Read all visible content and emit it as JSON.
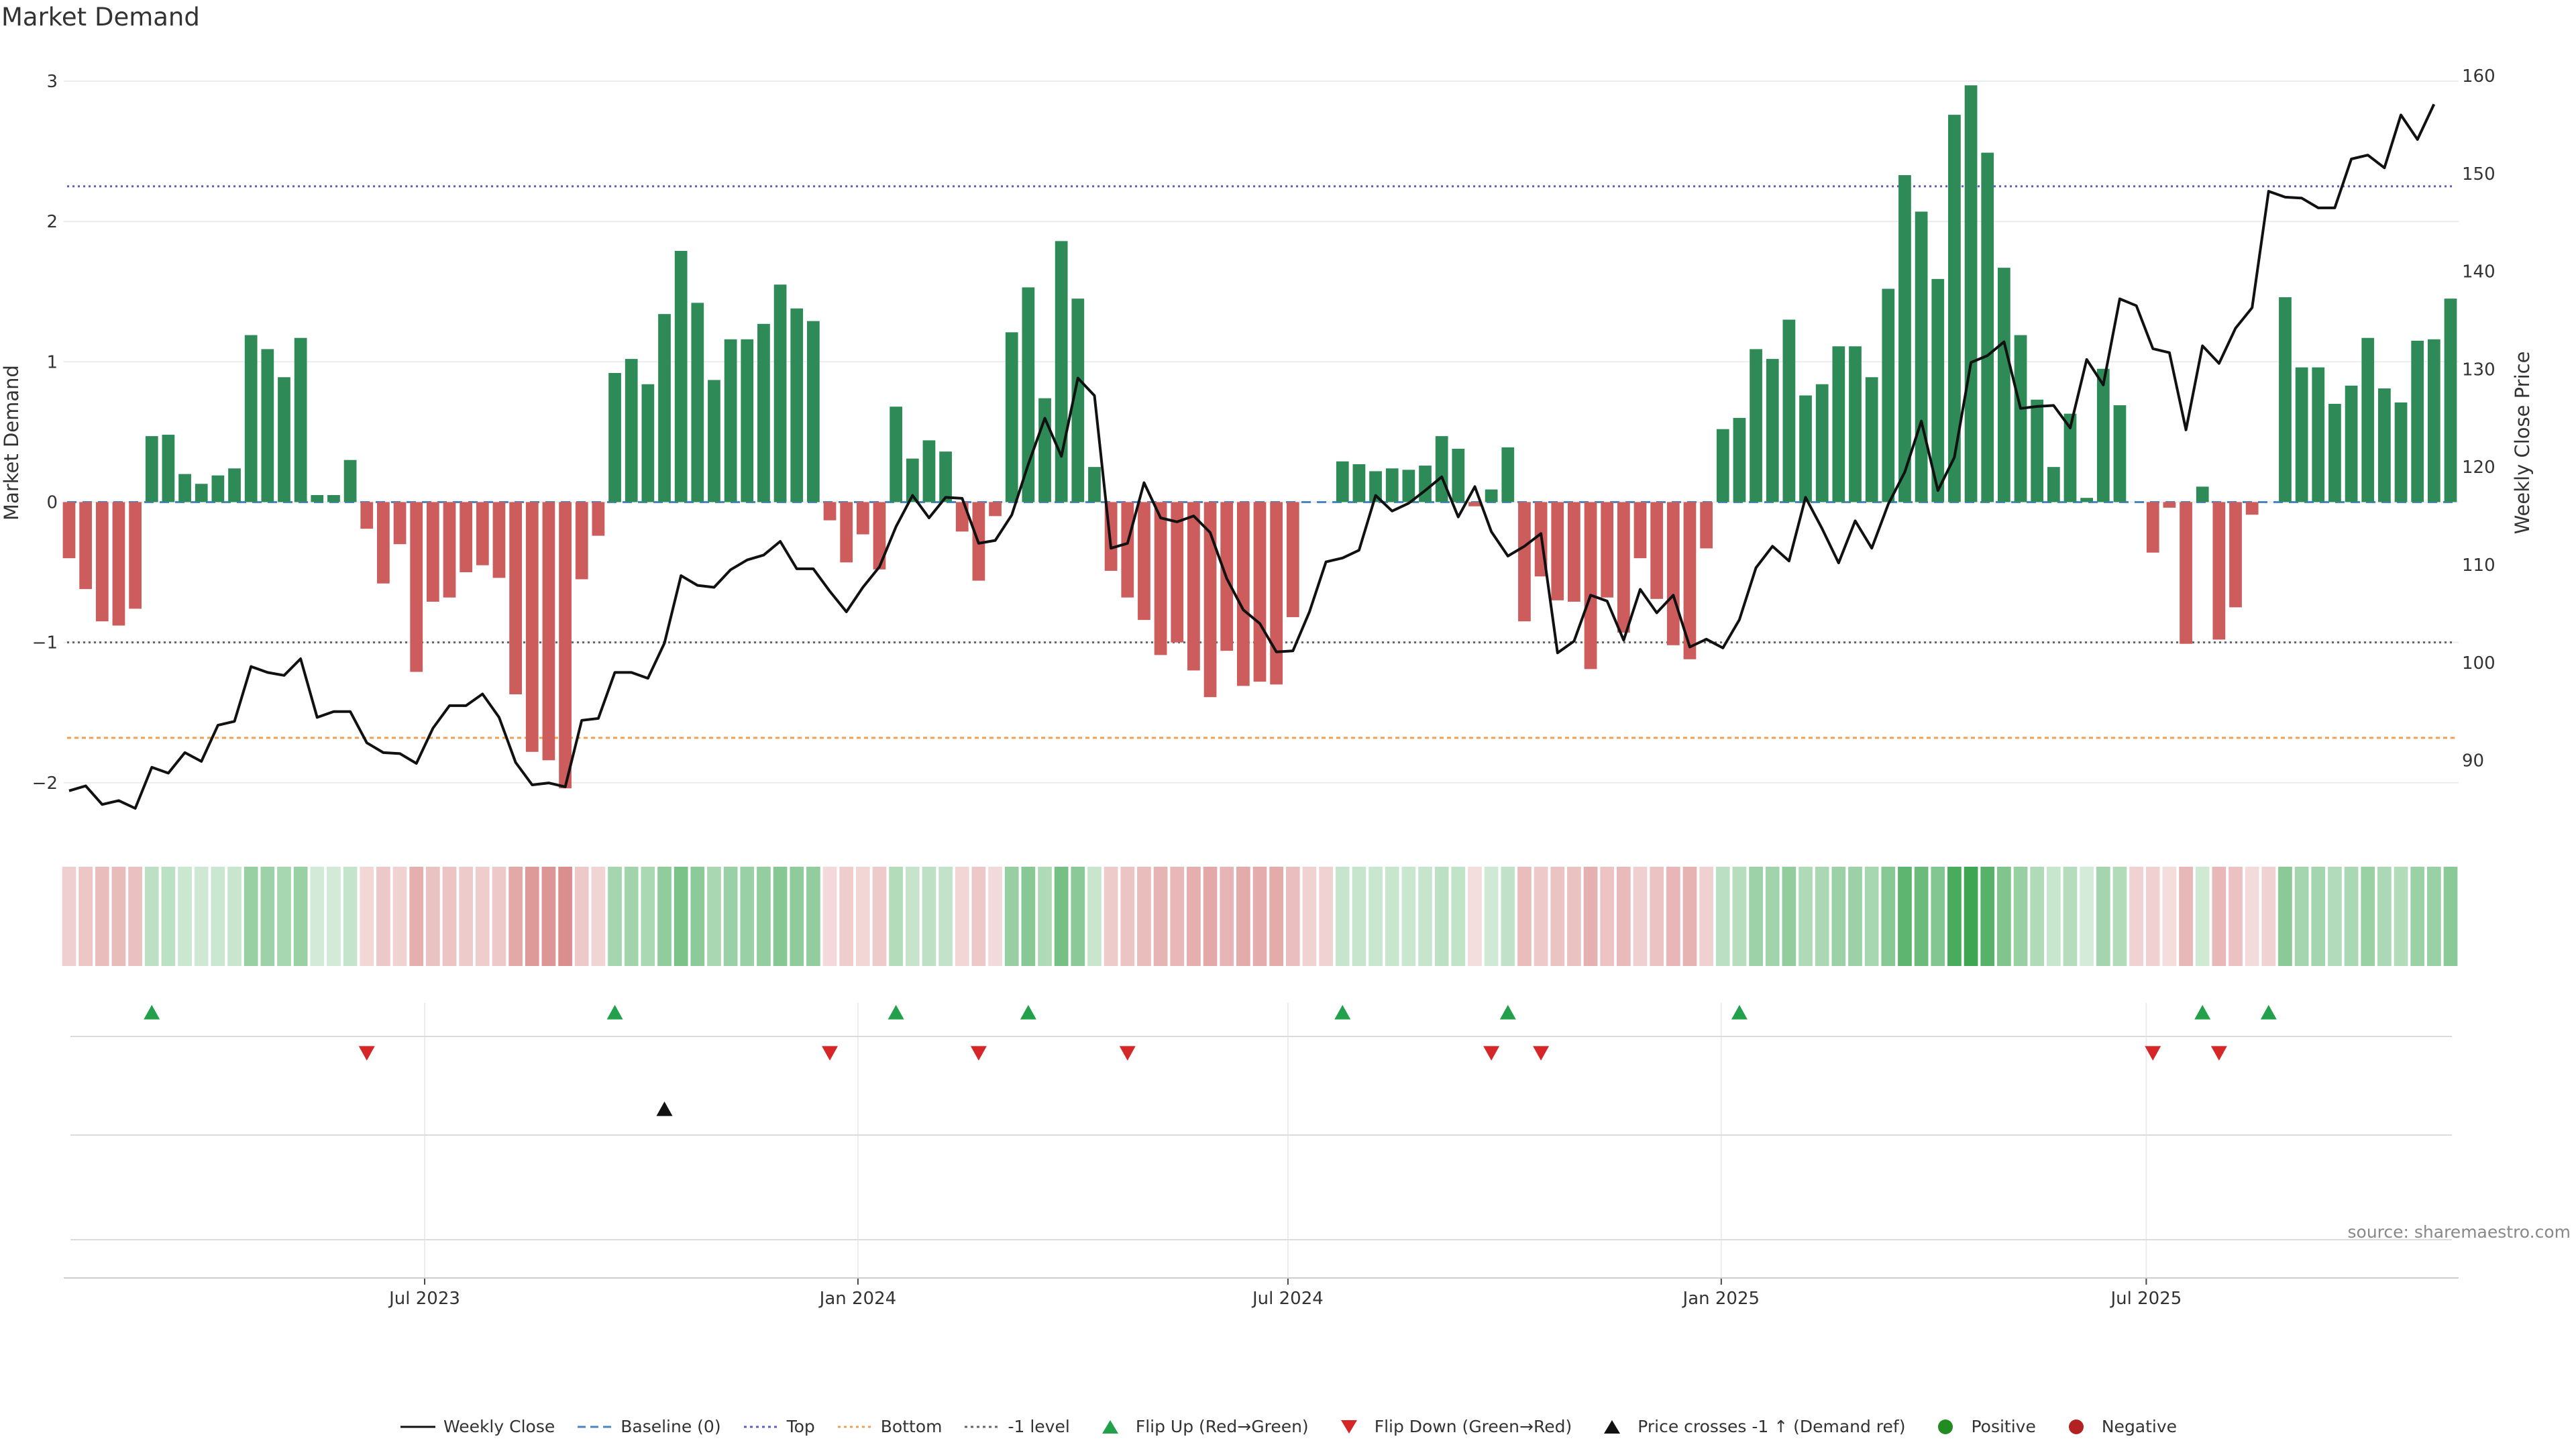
{
  "page": {
    "title": "Market Demand",
    "source": "source: sharemaestro.com"
  },
  "colors": {
    "positive": "#2e8b57",
    "negative": "#cd5c5c",
    "price": "#111111",
    "baseline": "#4a86c5",
    "top": "#5b5bd6",
    "bottom": "#f0a050",
    "minus_one": "#666666",
    "flip_up": "#22a04b",
    "flip_down": "#d62728",
    "cross": "#111111",
    "heat_pos": "#3ea653",
    "heat_neg": "#cf6a6a"
  },
  "legend": [
    {
      "label": "Weekly Close",
      "kind": "line",
      "color": "#111111"
    },
    {
      "label": "Baseline (0)",
      "kind": "dash",
      "color": "#4a86c5"
    },
    {
      "label": "Top",
      "kind": "dot",
      "color": "#5b5bd6"
    },
    {
      "label": "Bottom",
      "kind": "dot",
      "color": "#f0a050"
    },
    {
      "label": "-1 level",
      "kind": "dot",
      "color": "#666666"
    },
    {
      "label": "Flip Up (Red→Green)",
      "kind": "tri-up",
      "color": "#22a04b"
    },
    {
      "label": "Flip Down (Green→Red)",
      "kind": "tri-down",
      "color": "#d62728"
    },
    {
      "label": "Price crosses -1 ↑ (Demand ref)",
      "kind": "tri-up",
      "color": "#111111"
    },
    {
      "label": "Positive",
      "kind": "dot-circle",
      "color": "#228b22"
    },
    {
      "label": "Negative",
      "kind": "dot-circle",
      "color": "#b22222"
    }
  ],
  "chart_data": {
    "type": "bar",
    "title": "Market Demand",
    "xlabel": "",
    "ylabel": "Market Demand",
    "y2label": "Weekly Close Price",
    "ylim": [
      -2.35,
      3.1
    ],
    "y2lim": [
      82.7,
      160.9
    ],
    "yticks": [
      -2,
      -1,
      0,
      1,
      2,
      3
    ],
    "ytick_labels": [
      "−2",
      "−1",
      "0",
      "1",
      "2",
      "3"
    ],
    "y2ticks": [
      90,
      100,
      110,
      120,
      130,
      140,
      150,
      160
    ],
    "x_start": "2023-03-01",
    "x_tick_labels": [
      "Jul 2023",
      "Jan 2024",
      "Jul 2024",
      "Jan 2025",
      "Jul 2025"
    ],
    "x_tick_index": [
      21.5,
      47.7,
      73.7,
      99.9,
      125.6
    ],
    "reference_lines": {
      "baseline": 0,
      "top": 2.25,
      "bottom": -1.68,
      "minus_one": -1
    },
    "series": [
      {
        "name": "Market Demand",
        "kind": "bar",
        "values": [
          -0.4,
          -0.62,
          -0.85,
          -0.88,
          -0.76,
          0.47,
          0.48,
          0.2,
          0.13,
          0.19,
          0.24,
          1.19,
          1.09,
          0.89,
          1.17,
          0.05,
          0.05,
          0.3,
          -0.19,
          -0.58,
          -0.3,
          -1.21,
          -0.71,
          -0.68,
          -0.5,
          -0.45,
          -0.54,
          -1.37,
          -1.78,
          -1.84,
          -2.04,
          -0.55,
          -0.24,
          0.92,
          1.02,
          0.84,
          1.34,
          1.79,
          1.42,
          0.87,
          1.16,
          1.16,
          1.27,
          1.55,
          1.38,
          1.29,
          -0.13,
          -0.43,
          -0.23,
          -0.48,
          0.68,
          0.31,
          0.44,
          0.36,
          -0.21,
          -0.56,
          -0.1,
          1.21,
          1.53,
          0.74,
          1.86,
          1.45,
          0.25,
          -0.49,
          -0.68,
          -0.84,
          -1.09,
          -1.0,
          -1.2,
          -1.39,
          -1.06,
          -1.31,
          -1.28,
          -1.3,
          -0.82,
          0,
          0,
          0.29,
          0.27,
          0.22,
          0.24,
          0.23,
          0.26,
          0.47,
          0.38,
          -0.03,
          0.09,
          0.39,
          -0.85,
          -0.53,
          -0.7,
          -0.71,
          -1.19,
          -0.68,
          -0.93,
          -0.4,
          -0.69,
          -1.02,
          -1.12,
          -0.33,
          0.52,
          0.6,
          1.09,
          1.02,
          1.3,
          0.76,
          0.84,
          1.11,
          1.11,
          0.89,
          1.52,
          2.33,
          2.07,
          1.59,
          2.76,
          2.97,
          2.49,
          1.67,
          1.19,
          0.73,
          0.25,
          0.63,
          0.03,
          0.95,
          0.69,
          0,
          -0.36,
          -0.04,
          -1.01,
          0.11,
          -0.98,
          -0.75,
          -0.09,
          0,
          1.46,
          0.96,
          0.96,
          0.7,
          0.83,
          1.17,
          0.81,
          0.71,
          1.15,
          1.16,
          1.45
        ]
      },
      {
        "name": "Weekly Close",
        "kind": "line",
        "axis": "right",
        "values": [
          86.9,
          87.4,
          85.5,
          85.9,
          85.1,
          89.3,
          88.7,
          90.8,
          89.9,
          93.6,
          94.0,
          99.6,
          99.0,
          98.7,
          100.4,
          94.4,
          95.0,
          95.0,
          91.8,
          90.8,
          90.7,
          89.7,
          93.3,
          95.6,
          95.6,
          96.8,
          94.4,
          89.8,
          87.5,
          87.7,
          87.3,
          94.1,
          94.3,
          99.0,
          99.0,
          98.4,
          102.0,
          108.9,
          107.9,
          107.7,
          109.5,
          110.5,
          111.0,
          112.4,
          109.6,
          109.6,
          107.3,
          105.2,
          107.7,
          109.8,
          113.9,
          117.1,
          114.8,
          116.9,
          116.8,
          112.2,
          112.5,
          115.1,
          120.3,
          125.0,
          121.1,
          129.1,
          127.3,
          111.7,
          112.2,
          118.4,
          114.8,
          114.4,
          115.0,
          113.3,
          108.6,
          105.4,
          104.0,
          101.1,
          101.2,
          105.2,
          110.3,
          110.7,
          111.5,
          117.1,
          115.5,
          116.3,
          117.6,
          119.0,
          114.9,
          118.0,
          113.4,
          110.9,
          111.9,
          113.2,
          101.0,
          102.2,
          106.9,
          106.3,
          102.3,
          107.5,
          105.1,
          106.9,
          101.6,
          102.4,
          101.5,
          104.4,
          109.7,
          111.9,
          110.4,
          116.9,
          113.7,
          110.2,
          114.5,
          111.7,
          116.2,
          119.5,
          124.7,
          117.6,
          121.0,
          130.7,
          131.4,
          132.8,
          126.0,
          126.2,
          126.3,
          124.0,
          131.0,
          128.4,
          137.2,
          136.5,
          132.1,
          131.7,
          123.8,
          132.4,
          130.6,
          134.2,
          136.3,
          148.2,
          147.6,
          147.5,
          146.5,
          146.5,
          151.5,
          151.9,
          150.6,
          156.0,
          153.5,
          157.1
        ]
      }
    ],
    "heat_strip": "per-week color intensity by Market Demand sign and magnitude",
    "flip_up_index": [
      5,
      33,
      50,
      58,
      77,
      87,
      101,
      129,
      133
    ],
    "flip_down_index": [
      18,
      46,
      55,
      64,
      86,
      89,
      126,
      130
    ],
    "price_cross_index": [
      36
    ]
  }
}
